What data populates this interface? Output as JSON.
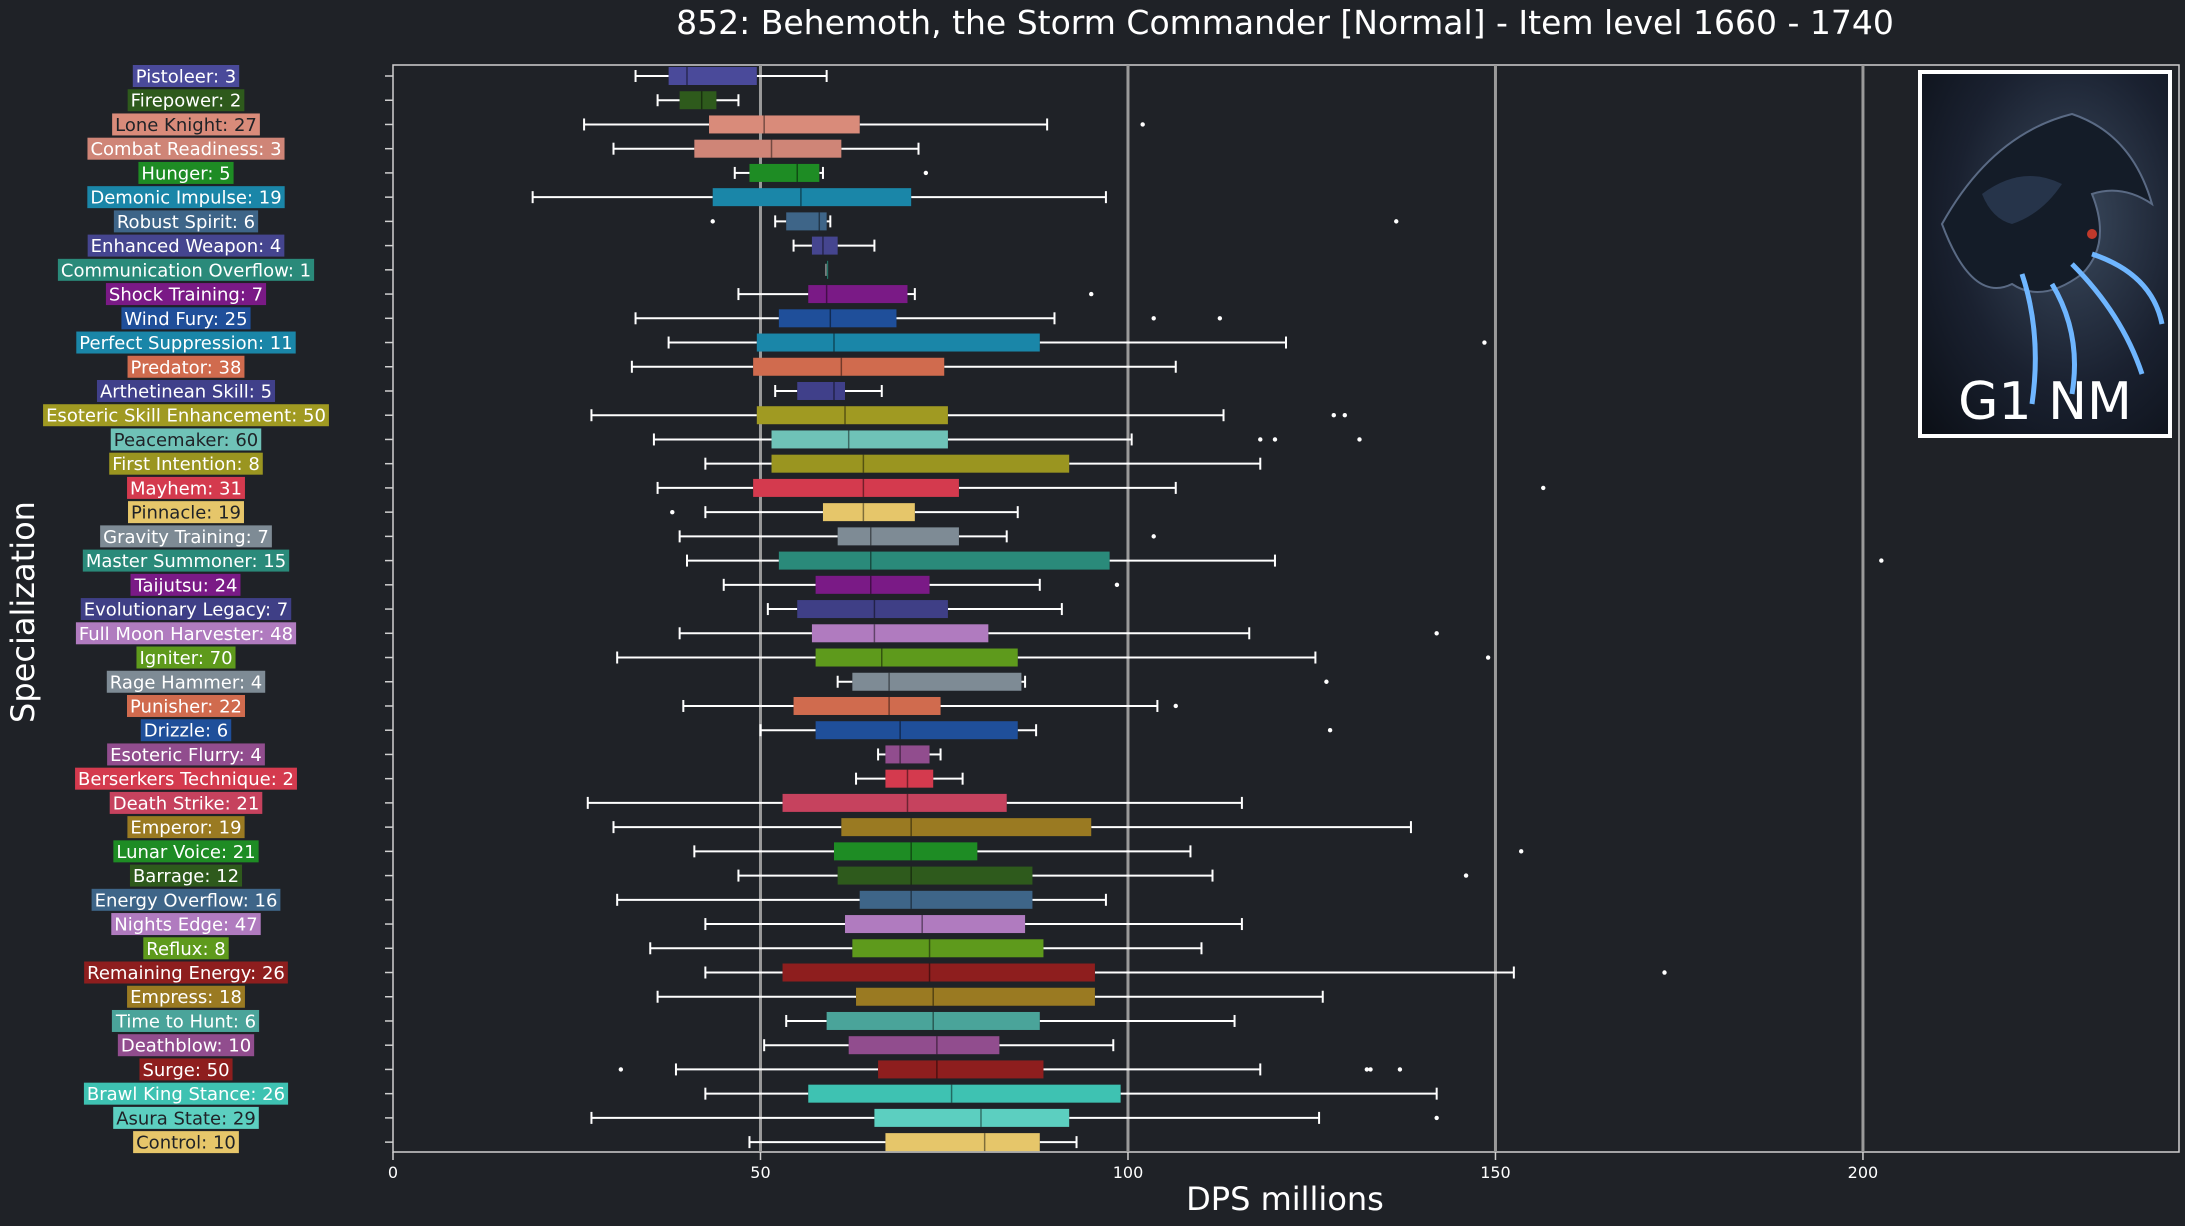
{
  "chart_data": {
    "type": "box",
    "title": "852: Behemoth, the Storm Commander [Normal] - Item level 1660 - 1740",
    "xlabel": "DPS millions",
    "ylabel": "Specialization",
    "xlim": [
      0,
      243
    ],
    "xticks": [
      0,
      50,
      100,
      150,
      200
    ],
    "vertical_reference_lines": [
      50,
      100,
      150,
      200
    ],
    "grid": false,
    "legend": "none",
    "series": [
      {
        "label": "Pistoleer: 3",
        "color": "#4a4a9a",
        "whisker_low": 33,
        "q1": 37.5,
        "median": 40,
        "q3": 49.5,
        "whisker_high": 59,
        "outliers": []
      },
      {
        "label": "Firepower: 2",
        "color": "#2e5a1c",
        "whisker_low": 36,
        "q1": 39,
        "median": 42,
        "q3": 44,
        "whisker_high": 47,
        "outliers": []
      },
      {
        "label": "Lone Knight: 27",
        "color": "#d98b7a",
        "whisker_low": 26,
        "q1": 43,
        "median": 50.5,
        "q3": 63.5,
        "whisker_high": 89,
        "outliers": [
          102
        ]
      },
      {
        "label": "Combat Readiness: 3",
        "color": "#cf8577",
        "whisker_low": 30,
        "q1": 41,
        "median": 51.5,
        "q3": 61,
        "whisker_high": 71.5,
        "outliers": []
      },
      {
        "label": "Hunger: 5",
        "color": "#1e8c24",
        "whisker_low": 46.5,
        "q1": 48.5,
        "median": 55,
        "q3": 58,
        "whisker_high": 58.5,
        "outliers": [
          72.5
        ]
      },
      {
        "label": "Demonic Impulse: 19",
        "color": "#1a86a8",
        "whisker_low": 19,
        "q1": 43.5,
        "median": 55.5,
        "q3": 70.5,
        "whisker_high": 97,
        "outliers": []
      },
      {
        "label": "Robust Spirit: 6",
        "color": "#3e6588",
        "whisker_low": 52,
        "q1": 53.5,
        "median": 58,
        "q3": 59,
        "whisker_high": 59.5,
        "outliers": [
          43.5,
          136.5
        ]
      },
      {
        "label": "Enhanced Weapon: 4",
        "color": "#45458f",
        "whisker_low": 54.5,
        "q1": 57,
        "median": 58.5,
        "q3": 60.5,
        "whisker_high": 65.5,
        "outliers": []
      },
      {
        "label": "Communication Overflow: 1",
        "color": "#2a8a7a",
        "whisker_low": 59,
        "q1": 59,
        "median": 59,
        "q3": 59,
        "whisker_high": 59,
        "outliers": []
      },
      {
        "label": "Shock Training: 7",
        "color": "#7a1a86",
        "whisker_low": 47,
        "q1": 56.5,
        "median": 59,
        "q3": 70,
        "whisker_high": 71,
        "outliers": [
          95
        ]
      },
      {
        "label": "Wind Fury: 25",
        "color": "#1f4f9a",
        "whisker_low": 33,
        "q1": 52.5,
        "median": 59.5,
        "q3": 68.5,
        "whisker_high": 90,
        "outliers": [
          103.5,
          112.5
        ]
      },
      {
        "label": "Perfect Suppression: 11",
        "color": "#1a86a8",
        "whisker_low": 37.5,
        "q1": 49.5,
        "median": 60,
        "q3": 88,
        "whisker_high": 121.5,
        "outliers": [
          148.5
        ]
      },
      {
        "label": "Predator: 38",
        "color": "#d06b4e",
        "whisker_low": 32.5,
        "q1": 49,
        "median": 61,
        "q3": 75,
        "whisker_high": 106.5,
        "outliers": []
      },
      {
        "label": "Arthetinean Skill: 5",
        "color": "#40408a",
        "whisker_low": 52,
        "q1": 55,
        "median": 60,
        "q3": 61.5,
        "whisker_high": 66.5,
        "outliers": []
      },
      {
        "label": "Esoteric Skill Enhancement: 50",
        "color": "#a09a22",
        "whisker_low": 27,
        "q1": 49.5,
        "median": 61.5,
        "q3": 75.5,
        "whisker_high": 113,
        "outliers": [
          128,
          129.5
        ]
      },
      {
        "label": "Peacemaker: 60",
        "color": "#6fc2b7",
        "whisker_low": 35.5,
        "q1": 51.5,
        "median": 62,
        "q3": 75.5,
        "whisker_high": 100.5,
        "outliers": [
          118,
          120,
          131.5
        ]
      },
      {
        "label": "First Intention: 8",
        "color": "#9a9520",
        "whisker_low": 42.5,
        "q1": 51.5,
        "median": 64,
        "q3": 92,
        "whisker_high": 118,
        "outliers": []
      },
      {
        "label": "Mayhem: 31",
        "color": "#d43a4e",
        "whisker_low": 36,
        "q1": 49,
        "median": 64,
        "q3": 77,
        "whisker_high": 106.5,
        "outliers": [
          156.5
        ]
      },
      {
        "label": "Pinnacle: 19",
        "color": "#e6c66a",
        "whisker_low": 42.5,
        "q1": 58.5,
        "median": 64,
        "q3": 71,
        "whisker_high": 85,
        "outliers": [
          38
        ]
      },
      {
        "label": "Gravity Training: 7",
        "color": "#7e8b95",
        "whisker_low": 39,
        "q1": 60.5,
        "median": 65,
        "q3": 77,
        "whisker_high": 83.5,
        "outliers": [
          103.5
        ]
      },
      {
        "label": "Master Summoner: 15",
        "color": "#2a8a7a",
        "whisker_low": 40,
        "q1": 52.5,
        "median": 65,
        "q3": 97.5,
        "whisker_high": 120,
        "outliers": [
          202.5
        ]
      },
      {
        "label": "Taijutsu: 24",
        "color": "#7a1a86",
        "whisker_low": 45,
        "q1": 57.5,
        "median": 65,
        "q3": 73,
        "whisker_high": 88,
        "outliers": [
          98.5
        ]
      },
      {
        "label": "Evolutionary Legacy: 7",
        "color": "#3f3f86",
        "whisker_low": 51,
        "q1": 55,
        "median": 65.5,
        "q3": 75.5,
        "whisker_high": 91,
        "outliers": []
      },
      {
        "label": "Full Moon Harvester: 48",
        "color": "#b07bbf",
        "whisker_low": 39,
        "q1": 57,
        "median": 65.5,
        "q3": 81,
        "whisker_high": 116.5,
        "outliers": [
          142
        ]
      },
      {
        "label": "Igniter: 70",
        "color": "#5e9a1c",
        "whisker_low": 30.5,
        "q1": 57.5,
        "median": 66.5,
        "q3": 85,
        "whisker_high": 125.5,
        "outliers": [
          149
        ]
      },
      {
        "label": "Rage Hammer: 4",
        "color": "#7e8b95",
        "whisker_low": 60.5,
        "q1": 62.5,
        "median": 67.5,
        "q3": 85.5,
        "whisker_high": 86,
        "outliers": [
          127
        ]
      },
      {
        "label": "Punisher: 22",
        "color": "#d06b4e",
        "whisker_low": 39.5,
        "q1": 54.5,
        "median": 67.5,
        "q3": 74.5,
        "whisker_high": 104,
        "outliers": [
          106.5
        ]
      },
      {
        "label": "Drizzle: 6",
        "color": "#1f4f9a",
        "whisker_low": 50,
        "q1": 57.5,
        "median": 69,
        "q3": 85,
        "whisker_high": 87.5,
        "outliers": [
          127.5
        ]
      },
      {
        "label": "Esoteric Flurry: 4",
        "color": "#914d8e",
        "whisker_low": 66,
        "q1": 67,
        "median": 69,
        "q3": 73,
        "whisker_high": 74.5,
        "outliers": []
      },
      {
        "label": "Berserkers Technique: 2",
        "color": "#d43a4e",
        "whisker_low": 63,
        "q1": 67,
        "median": 70,
        "q3": 73.5,
        "whisker_high": 77.5,
        "outliers": []
      },
      {
        "label": "Death Strike: 21",
        "color": "#c6425e",
        "whisker_low": 26.5,
        "q1": 53,
        "median": 70,
        "q3": 83.5,
        "whisker_high": 115.5,
        "outliers": []
      },
      {
        "label": "Emperor: 19",
        "color": "#9a7a22",
        "whisker_low": 30,
        "q1": 61,
        "median": 70.5,
        "q3": 95,
        "whisker_high": 138.5,
        "outliers": []
      },
      {
        "label": "Lunar Voice: 21",
        "color": "#1e8c24",
        "whisker_low": 41,
        "q1": 60,
        "median": 70.5,
        "q3": 79.5,
        "whisker_high": 108.5,
        "outliers": [
          153.5
        ]
      },
      {
        "label": "Barrage: 12",
        "color": "#2e5a1c",
        "whisker_low": 47,
        "q1": 60.5,
        "median": 70.5,
        "q3": 87,
        "whisker_high": 111.5,
        "outliers": [
          146
        ]
      },
      {
        "label": "Energy Overflow: 16",
        "color": "#3e6588",
        "whisker_low": 30.5,
        "q1": 63.5,
        "median": 70.5,
        "q3": 87,
        "whisker_high": 97,
        "outliers": []
      },
      {
        "label": "Nights Edge: 47",
        "color": "#b07bbf",
        "whisker_low": 42.5,
        "q1": 61.5,
        "median": 72,
        "q3": 86,
        "whisker_high": 115.5,
        "outliers": []
      },
      {
        "label": "Reflux: 8",
        "color": "#5e9a1c",
        "whisker_low": 35,
        "q1": 62.5,
        "median": 73,
        "q3": 88.5,
        "whisker_high": 110,
        "outliers": []
      },
      {
        "label": "Remaining Energy: 26",
        "color": "#8e1e1e",
        "whisker_low": 42.5,
        "q1": 53,
        "median": 73,
        "q3": 95.5,
        "whisker_high": 152.5,
        "outliers": [
          173
        ]
      },
      {
        "label": "Empress: 18",
        "color": "#9a7a22",
        "whisker_low": 36,
        "q1": 63,
        "median": 73.5,
        "q3": 95.5,
        "whisker_high": 126.5,
        "outliers": []
      },
      {
        "label": "Time to Hunt: 6",
        "color": "#4aa49a",
        "whisker_low": 53.5,
        "q1": 59,
        "median": 73.5,
        "q3": 88,
        "whisker_high": 114.5,
        "outliers": []
      },
      {
        "label": "Deathblow: 10",
        "color": "#914d8e",
        "whisker_low": 50.5,
        "q1": 62,
        "median": 74,
        "q3": 82.5,
        "whisker_high": 98,
        "outliers": []
      },
      {
        "label": "Surge: 50",
        "color": "#8e1e1e",
        "whisker_low": 38.5,
        "q1": 66,
        "median": 74,
        "q3": 88.5,
        "whisker_high": 118,
        "outliers": [
          31,
          132.5,
          133,
          137
        ]
      },
      {
        "label": "Brawl King Stance: 26",
        "color": "#3ec2b2",
        "whisker_low": 42.5,
        "q1": 56.5,
        "median": 76,
        "q3": 99,
        "whisker_high": 142,
        "outliers": []
      },
      {
        "label": "Asura State: 29",
        "color": "#5ccfc0",
        "whisker_low": 27,
        "q1": 65.5,
        "median": 80,
        "q3": 92,
        "whisker_high": 126,
        "outliers": [
          142
        ]
      },
      {
        "label": "Control: 10",
        "color": "#e6c66a",
        "whisker_low": 48.5,
        "q1": 67,
        "median": 80.5,
        "q3": 88,
        "whisker_high": 93,
        "outliers": []
      }
    ]
  },
  "boss_card": {
    "caption": "G1 NM",
    "image": "dragon-portrait"
  }
}
